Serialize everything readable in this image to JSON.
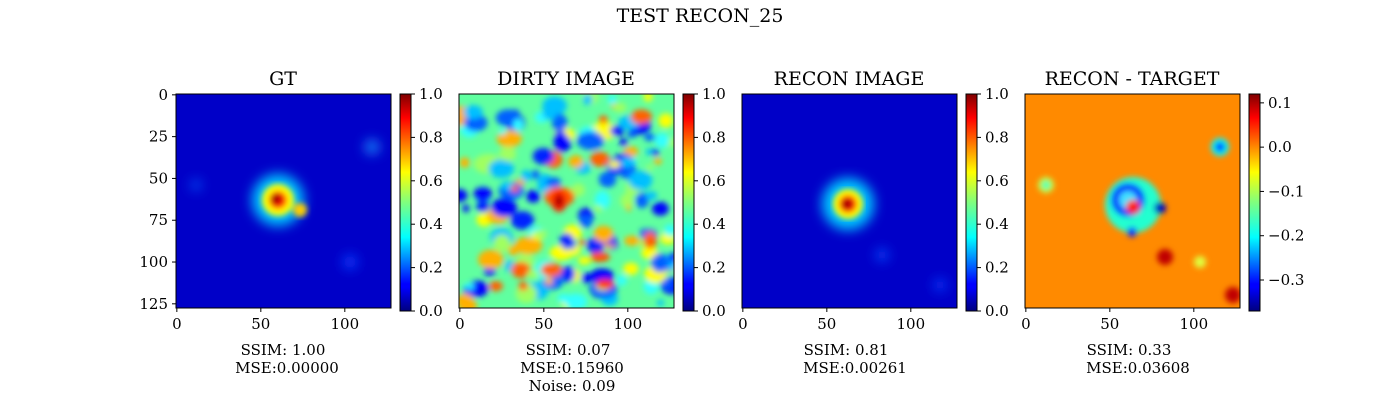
{
  "figure": {
    "title": "TEST RECON_25"
  },
  "chart_data": [
    {
      "type": "heatmap",
      "title": "GT",
      "image_size": [
        128,
        128
      ],
      "x_ticks": [
        "0",
        "50",
        "100"
      ],
      "y_ticks": [
        "0",
        "25",
        "50",
        "75",
        "100",
        "125"
      ],
      "colormap": "jet",
      "colorbar": {
        "min": 0.0,
        "max": 1.0,
        "ticks": [
          "0.0",
          "0.2",
          "0.4",
          "0.6",
          "0.8",
          "1.0"
        ]
      },
      "caption": [
        "SSIM: 1.00",
        "MSE:0.00000"
      ]
    },
    {
      "type": "heatmap",
      "title": "DIRTY IMAGE",
      "image_size": [
        128,
        128
      ],
      "x_ticks": [
        "0",
        "50",
        "100"
      ],
      "colormap": "jet",
      "colorbar": {
        "min": 0.0,
        "max": 1.0,
        "ticks": [
          "0.0",
          "0.2",
          "0.4",
          "0.6",
          "0.8",
          "1.0"
        ]
      },
      "caption": [
        "SSIM: 0.07",
        "MSE:0.15960",
        "Noise: 0.09"
      ]
    },
    {
      "type": "heatmap",
      "title": "RECON IMAGE",
      "image_size": [
        128,
        128
      ],
      "x_ticks": [
        "0",
        "50",
        "100"
      ],
      "colormap": "jet",
      "colorbar": {
        "min": 0.0,
        "max": 1.0,
        "ticks": [
          "0.0",
          "0.2",
          "0.4",
          "0.6",
          "0.8",
          "1.0"
        ]
      },
      "caption": [
        "SSIM: 0.81",
        "MSE:0.00261"
      ]
    },
    {
      "type": "heatmap",
      "title": "RECON - TARGET",
      "image_size": [
        128,
        128
      ],
      "x_ticks": [
        "0",
        "50",
        "100"
      ],
      "colormap": "jet",
      "colorbar": {
        "min": -0.37,
        "max": 0.12,
        "ticks": [
          "0.1",
          "0.0",
          "−0.1",
          "−0.2",
          "−0.3"
        ]
      },
      "caption": [
        "SSIM: 0.33",
        "MSE:0.03608"
      ]
    }
  ]
}
